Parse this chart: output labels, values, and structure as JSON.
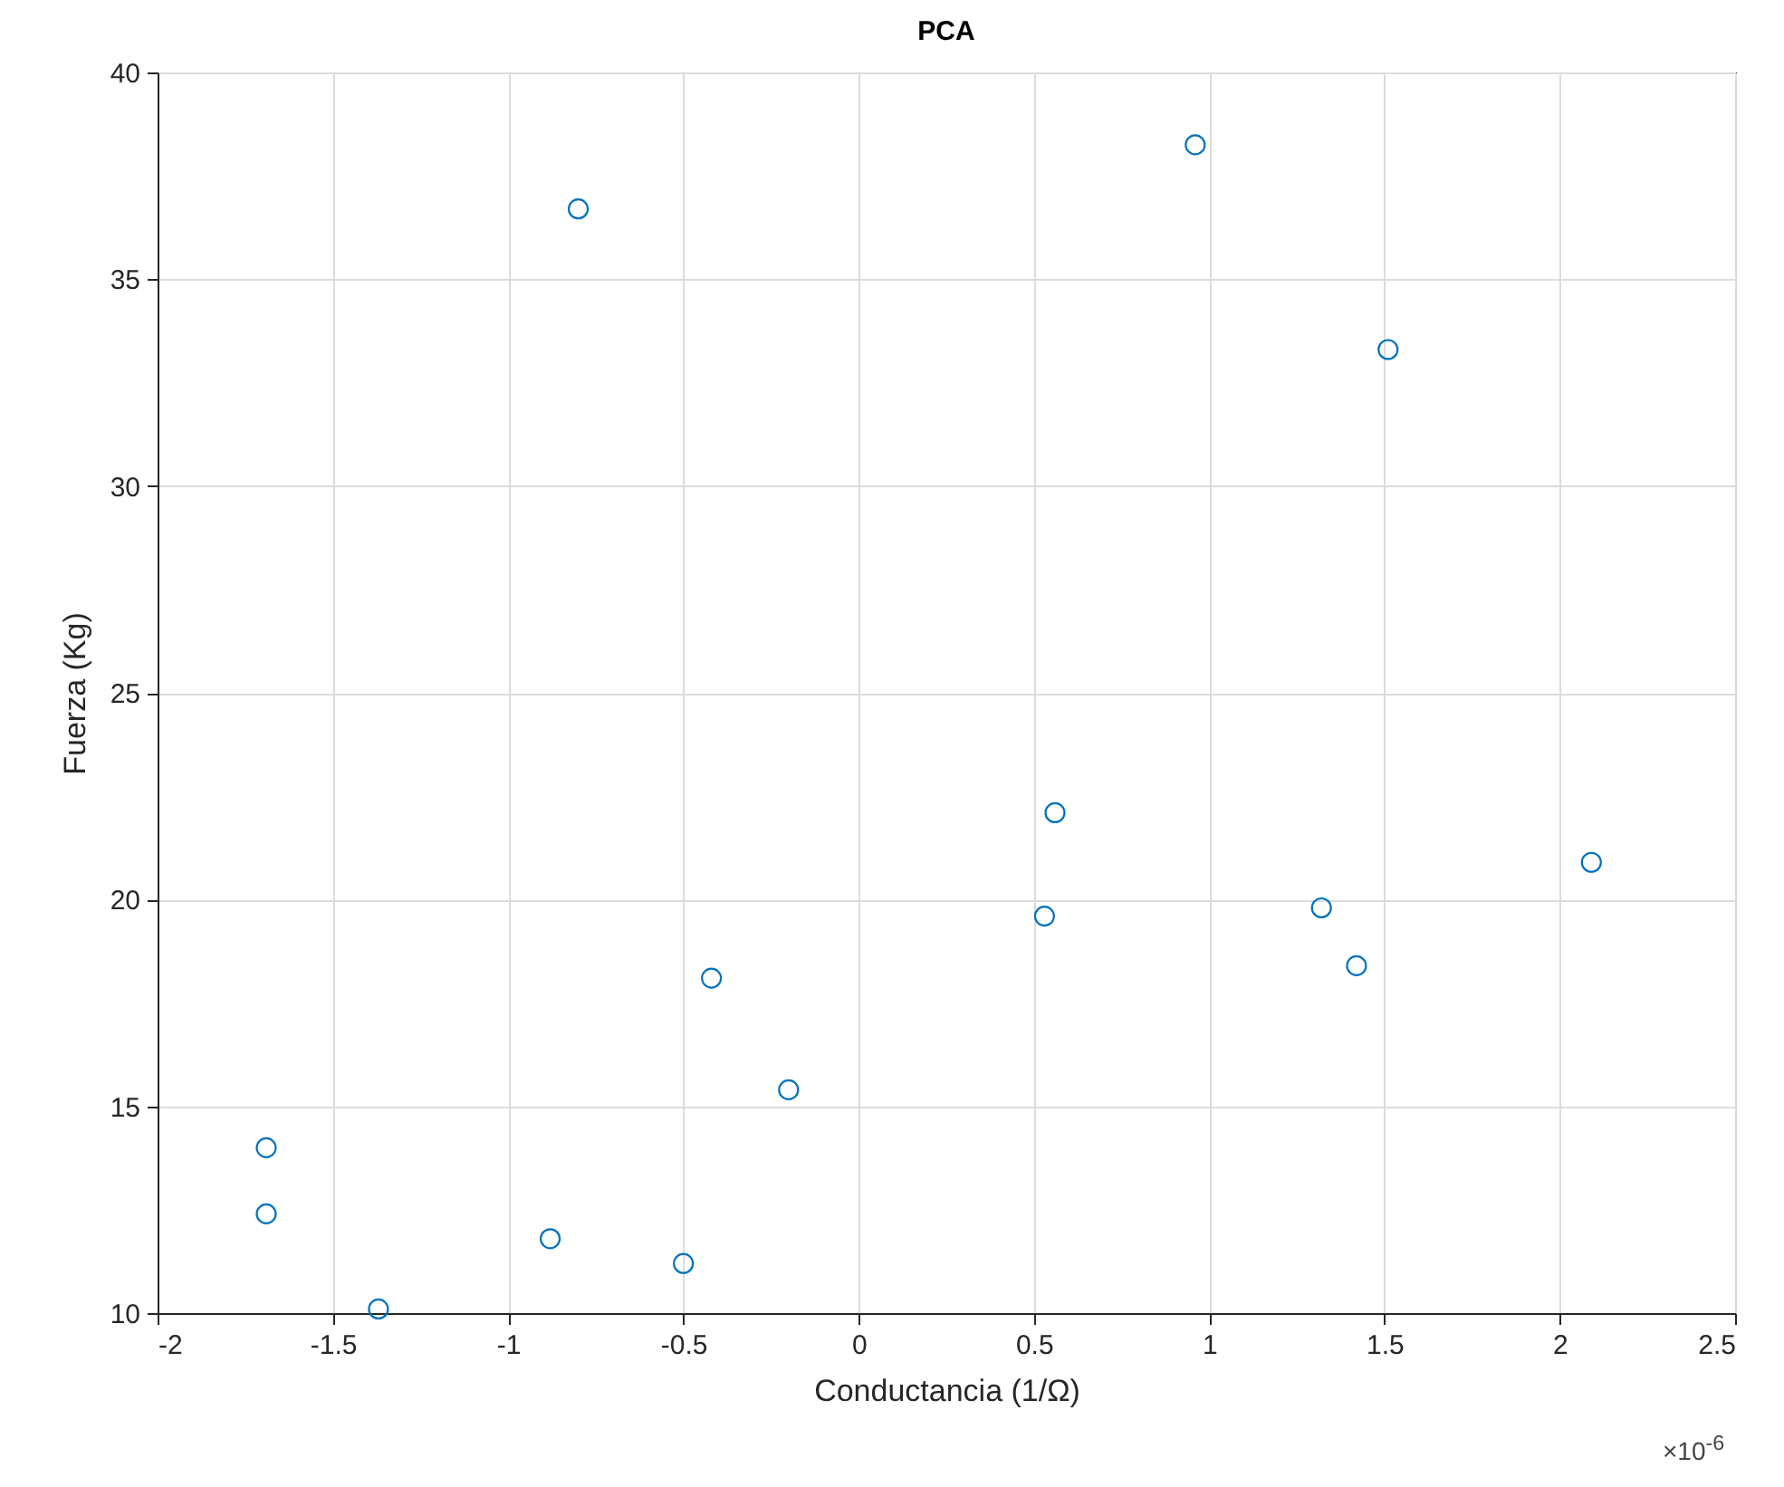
{
  "chart_data": {
    "type": "scatter",
    "title": "PCA",
    "xlabel": "Conductancia (1/Ω)",
    "ylabel": "Fuerza (Kg)",
    "annotations": [
      "×10$^{-6}$"
    ],
    "x": [
      -1.69,
      -1.69,
      -1.37,
      -0.88,
      -0.8,
      -0.5,
      -0.42,
      -0.2,
      0.53,
      0.56,
      0.96,
      1.32,
      1.42,
      1.51,
      2.09
    ],
    "series": [
      {
        "color": "#0072bd",
        "values": [
          14.0,
          12.4,
          10.1,
          11.8,
          36.7,
          11.2,
          18.1,
          15.4,
          19.6,
          22.1,
          38.25,
          19.8,
          18.4,
          33.3,
          20.9
        ]
      }
    ],
    "xlim": [
      -2,
      2.5
    ],
    "xticks": [
      -2,
      -1.5,
      -1,
      -0.5,
      0,
      0.5,
      1,
      1.5,
      2,
      2.5
    ],
    "ylim": [
      10,
      40
    ],
    "yticks": [
      10,
      15,
      20,
      25,
      30,
      35,
      40
    ],
    "grid": true,
    "marker": "circle"
  }
}
